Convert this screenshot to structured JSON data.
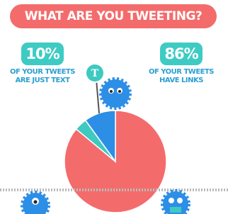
{
  "chart_data": {
    "type": "pie",
    "title": "WHAT ARE YOU TWEETING?",
    "categories": [
      "OF YOUR TWEETS HAVE LINKS",
      null,
      "OF YOUR TWEETS ARE JUST TEXT"
    ],
    "values": [
      86,
      4,
      10
    ],
    "value_labels": [
      "86%",
      null,
      "10%"
    ],
    "colors": [
      "#f46b6b",
      "#3ec9c1",
      "#2d8ee6"
    ],
    "sign_text": "T"
  }
}
